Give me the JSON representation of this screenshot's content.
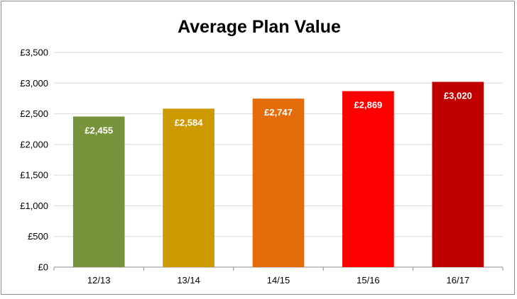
{
  "chart_data": {
    "type": "bar",
    "title": "Average Plan Value",
    "xlabel": "",
    "ylabel": "",
    "categories": [
      "12/13",
      "13/14",
      "14/15",
      "15/16",
      "16/17"
    ],
    "values": [
      2455,
      2584,
      2747,
      2869,
      3020
    ],
    "data_labels": [
      "£2,455",
      "£2,584",
      "£2,747",
      "£2,869",
      "£3,020"
    ],
    "colors": [
      "#77933c",
      "#cc9900",
      "#e46c0a",
      "#ff0000",
      "#c00000"
    ],
    "ylim": [
      0,
      3500
    ],
    "yticks": [
      0,
      500,
      1000,
      1500,
      2000,
      2500,
      3000,
      3500
    ],
    "ytick_labels": [
      "£0",
      "£500",
      "£1,000",
      "£1,500",
      "£2,000",
      "£2,500",
      "£3,000",
      "£3,500"
    ],
    "grid": true,
    "legend": "none"
  }
}
